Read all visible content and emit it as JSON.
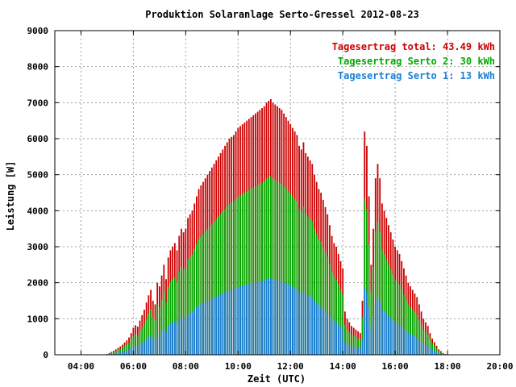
{
  "chart_data": {
    "type": "bar",
    "title": "Produktion Solaranlage Serto-Gressel 2012-08-23",
    "xlabel": "Zeit (UTC)",
    "ylabel": "Leistung [W]",
    "ylim": [
      0,
      9000
    ],
    "xlim": [
      "03:00",
      "20:00"
    ],
    "grid": true,
    "legend_position": "top-right",
    "y_ticks": [
      "0",
      "1000",
      "2000",
      "3000",
      "4000",
      "5000",
      "6000",
      "7000",
      "8000",
      "9000"
    ],
    "x_ticks": [
      "04:00",
      "06:00",
      "08:00",
      "10:00",
      "12:00",
      "14:00",
      "16:00",
      "18:00",
      "20:00"
    ],
    "legend": [
      {
        "label": "Tagesertrag total: 43.49 kWh",
        "color": "#cc0000"
      },
      {
        "label": "Tagesertrag Serto 2: 30 kWh",
        "color": "#00aa00"
      },
      {
        "label": "Tagesertrag Serto 1: 13 kWh",
        "color": "#1a7fd6"
      }
    ],
    "time_interval_minutes": 5,
    "time_labels": [
      "04:55",
      "05:00",
      "05:05",
      "05:10",
      "05:15",
      "05:20",
      "05:25",
      "05:30",
      "05:35",
      "05:40",
      "05:45",
      "05:50",
      "05:55",
      "06:00",
      "06:05",
      "06:10",
      "06:15",
      "06:20",
      "06:25",
      "06:30",
      "06:35",
      "06:40",
      "06:45",
      "06:50",
      "06:55",
      "07:00",
      "07:05",
      "07:10",
      "07:15",
      "07:20",
      "07:25",
      "07:30",
      "07:35",
      "07:40",
      "07:45",
      "07:50",
      "07:55",
      "08:00",
      "08:05",
      "08:10",
      "08:15",
      "08:20",
      "08:25",
      "08:30",
      "08:35",
      "08:40",
      "08:45",
      "08:50",
      "08:55",
      "09:00",
      "09:05",
      "09:10",
      "09:15",
      "09:20",
      "09:25",
      "09:30",
      "09:35",
      "09:40",
      "09:45",
      "09:50",
      "09:55",
      "10:00",
      "10:05",
      "10:10",
      "10:15",
      "10:20",
      "10:25",
      "10:30",
      "10:35",
      "10:40",
      "10:45",
      "10:50",
      "10:55",
      "11:00",
      "11:05",
      "11:10",
      "11:15",
      "11:20",
      "11:25",
      "11:30",
      "11:35",
      "11:40",
      "11:45",
      "11:50",
      "11:55",
      "12:00",
      "12:05",
      "12:10",
      "12:15",
      "12:20",
      "12:25",
      "12:30",
      "12:35",
      "12:40",
      "12:45",
      "12:50",
      "12:55",
      "13:00",
      "13:05",
      "13:10",
      "13:15",
      "13:20",
      "13:25",
      "13:30",
      "13:35",
      "13:40",
      "13:45",
      "13:50",
      "13:55",
      "14:00",
      "14:05",
      "14:10",
      "14:15",
      "14:20",
      "14:25",
      "14:30",
      "14:35",
      "14:40",
      "14:45",
      "14:50",
      "14:55",
      "15:00",
      "15:05",
      "15:10",
      "15:15",
      "15:20",
      "15:25",
      "15:30",
      "15:35",
      "15:40",
      "15:45",
      "15:50",
      "15:55",
      "16:00",
      "16:05",
      "16:10",
      "16:15",
      "16:20",
      "16:25",
      "16:30",
      "16:35",
      "16:40",
      "16:45",
      "16:50",
      "16:55",
      "17:00",
      "17:05",
      "17:10",
      "17:15",
      "17:20",
      "17:25",
      "17:30",
      "17:35",
      "17:40",
      "17:45",
      "17:50",
      "17:55",
      "18:00"
    ],
    "series": [
      {
        "name": "Tagesertrag total: 43.49 kWh",
        "color": "#cc0000",
        "values": [
          0,
          20,
          50,
          80,
          110,
          150,
          190,
          230,
          280,
          340,
          400,
          480,
          600,
          750,
          820,
          780,
          950,
          1100,
          1250,
          1450,
          1650,
          1800,
          1500,
          1400,
          2000,
          1900,
          2200,
          2500,
          2100,
          2700,
          2900,
          3000,
          3100,
          2900,
          3300,
          3500,
          3400,
          3500,
          3800,
          3900,
          4000,
          4200,
          4400,
          4600,
          4700,
          4800,
          4900,
          5000,
          5100,
          5200,
          5300,
          5400,
          5500,
          5600,
          5700,
          5800,
          5900,
          6000,
          6050,
          6100,
          6200,
          6300,
          6350,
          6400,
          6450,
          6500,
          6550,
          6600,
          6650,
          6700,
          6750,
          6800,
          6850,
          6900,
          7000,
          7050,
          7100,
          7000,
          6950,
          6900,
          6850,
          6800,
          6700,
          6600,
          6500,
          6400,
          6300,
          6200,
          6100,
          5800,
          5700,
          5900,
          5600,
          5500,
          5400,
          5300,
          5000,
          4800,
          4600,
          4500,
          4300,
          4100,
          3900,
          3600,
          3300,
          3100,
          3000,
          2800,
          2600,
          2400,
          1200,
          1000,
          900,
          800,
          750,
          700,
          650,
          600,
          1500,
          6200,
          5800,
          4400,
          2500,
          3500,
          4900,
          5300,
          4900,
          4200,
          4000,
          3800,
          3600,
          3400,
          3200,
          3000,
          2900,
          2800,
          2600,
          2400,
          2200,
          2000,
          1900,
          1800,
          1700,
          1600,
          1400,
          1200,
          1000,
          900,
          800,
          600,
          450,
          350,
          250,
          150,
          100,
          50,
          20,
          0
        ]
      },
      {
        "name": "Tagesertrag Serto 2: 30 kWh",
        "color": "#00aa00",
        "values": [
          0,
          15,
          35,
          55,
          75,
          100,
          130,
          160,
          200,
          240,
          280,
          330,
          420,
          520,
          570,
          540,
          660,
          760,
          870,
          1000,
          1150,
          1250,
          1050,
          980,
          1400,
          1320,
          1530,
          1740,
          1460,
          1880,
          2020,
          2090,
          2160,
          2020,
          2300,
          2440,
          2370,
          2440,
          2650,
          2720,
          2790,
          2930,
          3070,
          3210,
          3280,
          3350,
          3420,
          3490,
          3560,
          3630,
          3700,
          3770,
          3840,
          3910,
          3980,
          4050,
          4120,
          4190,
          4220,
          4260,
          4330,
          4400,
          4430,
          4470,
          4500,
          4540,
          4570,
          4610,
          4640,
          4680,
          4710,
          4750,
          4780,
          4820,
          4890,
          4920,
          4960,
          4890,
          4850,
          4820,
          4780,
          4750,
          4680,
          4610,
          4540,
          4470,
          4400,
          4330,
          4260,
          4050,
          3980,
          4120,
          3910,
          3840,
          3770,
          3700,
          3490,
          3350,
          3210,
          3140,
          3000,
          2860,
          2720,
          2510,
          2300,
          2160,
          2090,
          1950,
          1810,
          1670,
          840,
          700,
          630,
          560,
          520,
          490,
          450,
          420,
          1050,
          4330,
          4050,
          3070,
          1740,
          2440,
          3420,
          3700,
          3420,
          2930,
          2790,
          2650,
          2510,
          2370,
          2230,
          2090,
          2020,
          1950,
          1810,
          1670,
          1530,
          1400,
          1320,
          1250,
          1180,
          1110,
          980,
          840,
          700,
          630,
          560,
          420,
          310,
          240,
          170,
          100,
          70,
          35,
          15,
          0
        ]
      },
      {
        "name": "Tagesertrag Serto 1: 13 kWh",
        "color": "#1a7fd6",
        "values": [
          0,
          5,
          15,
          25,
          35,
          50,
          60,
          70,
          80,
          100,
          120,
          150,
          180,
          230,
          250,
          240,
          290,
          330,
          380,
          440,
          500,
          540,
          450,
          420,
          600,
          570,
          660,
          750,
          630,
          810,
          870,
          900,
          930,
          870,
          990,
          1050,
          1020,
          1050,
          1140,
          1170,
          1200,
          1260,
          1320,
          1380,
          1410,
          1440,
          1470,
          1500,
          1530,
          1560,
          1590,
          1620,
          1650,
          1680,
          1710,
          1740,
          1770,
          1800,
          1820,
          1830,
          1860,
          1890,
          1900,
          1920,
          1930,
          1950,
          1960,
          1980,
          1990,
          2010,
          2020,
          2040,
          2050,
          2070,
          2100,
          2110,
          2130,
          2100,
          2080,
          2070,
          2050,
          2040,
          2010,
          1980,
          1950,
          1920,
          1890,
          1860,
          1830,
          1740,
          1710,
          1770,
          1680,
          1650,
          1620,
          1590,
          1500,
          1440,
          1380,
          1350,
          1290,
          1230,
          1170,
          1080,
          990,
          930,
          900,
          840,
          780,
          720,
          360,
          300,
          270,
          240,
          230,
          210,
          200,
          180,
          450,
          1860,
          1740,
          1320,
          750,
          1050,
          1470,
          1590,
          1470,
          1260,
          1200,
          1140,
          1080,
          1020,
          960,
          900,
          870,
          840,
          780,
          720,
          660,
          600,
          570,
          540,
          510,
          480,
          420,
          360,
          300,
          270,
          240,
          180,
          140,
          110,
          80,
          50,
          30,
          15,
          5,
          0
        ]
      }
    ]
  }
}
